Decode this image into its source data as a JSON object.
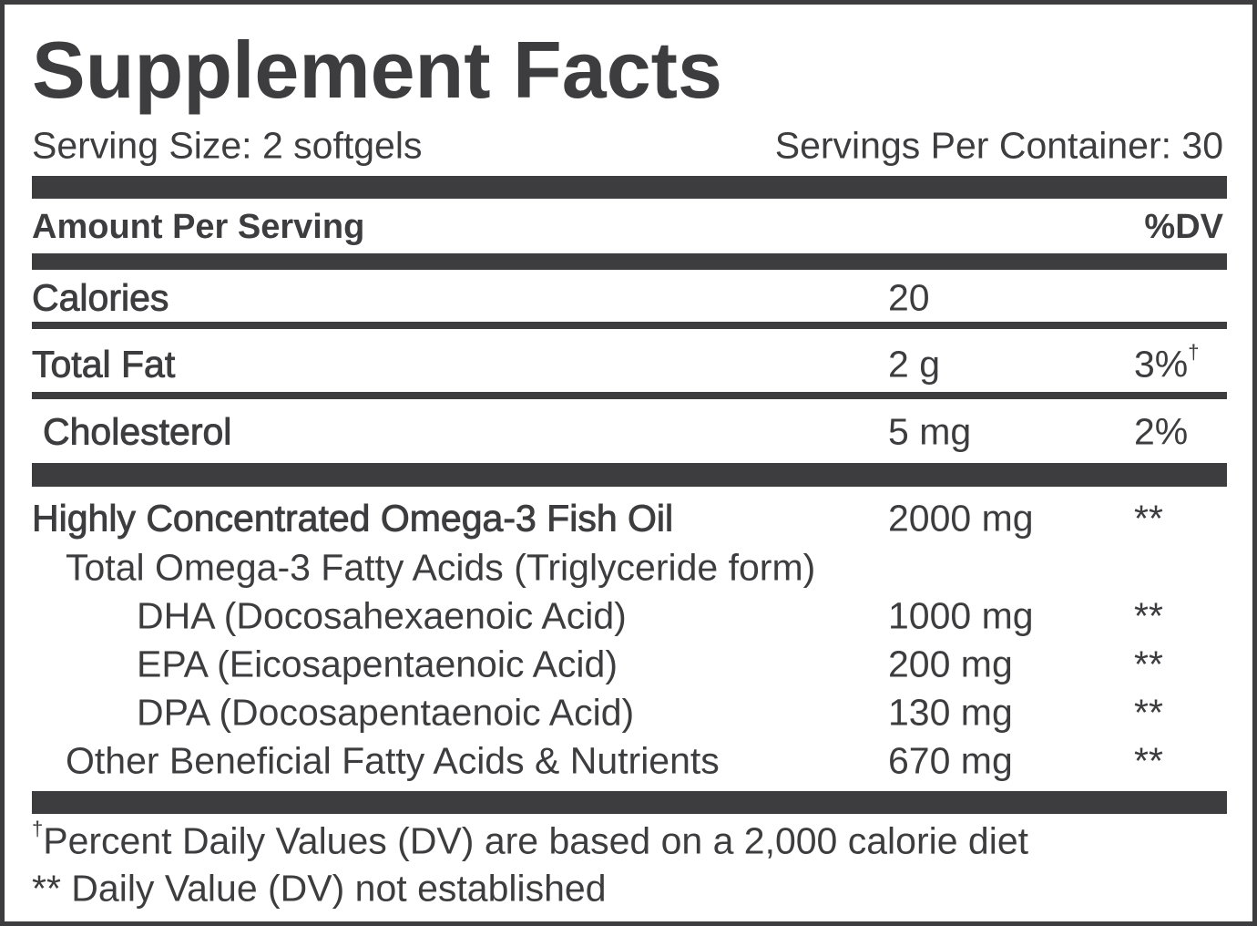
{
  "header": {
    "title": "Supplement Facts",
    "serving_size": "Serving Size: 2 softgels",
    "servings_per_container": "Servings Per Container: 30"
  },
  "table": {
    "columns": {
      "amount_label": "Amount Per Serving",
      "dv_label": "%DV"
    },
    "rows": [
      [
        "Calories",
        "20"
      ],
      [
        "Total Fat",
        "2 g",
        "3%",
        "†"
      ],
      [
        "Cholesterol",
        "5 mg",
        "2%"
      ],
      [
        "Highly Concentrated Omega-3 Fish Oil",
        "2000 mg",
        "**"
      ],
      [
        "Total Omega-3 Fatty Acids (Triglyceride form)"
      ],
      [
        "DHA (Docosahexaenoic Acid)",
        "1000 mg",
        "**"
      ],
      [
        "EPA (Eicosapentaenoic Acid)",
        "200 mg",
        "**"
      ],
      [
        "DPA (Docosapentaenoic Acid)",
        "130 mg",
        "**"
      ],
      [
        "Other Beneficial Fatty Acids & Nutrients",
        "670 mg",
        "**"
      ]
    ]
  },
  "footnotes": [
    {
      "marker": "†",
      "text": "Percent Daily Values (DV) are based on a 2,000 calorie diet"
    },
    {
      "text": "** Daily Value (DV) not established"
    }
  ]
}
